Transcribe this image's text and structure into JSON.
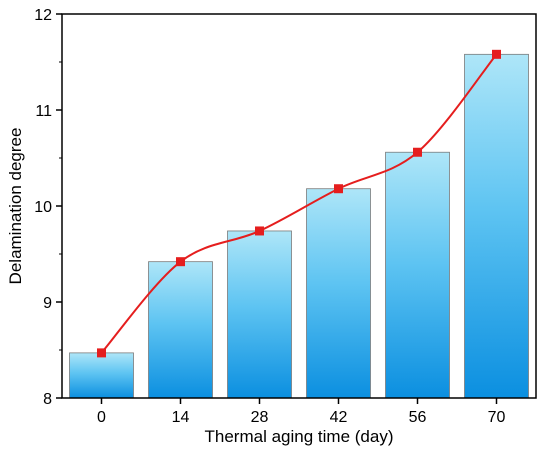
{
  "chart_data": {
    "type": "bar",
    "title": "",
    "xlabel": "Thermal aging time (day)",
    "ylabel": "Delamination degree",
    "categories": [
      "0",
      "14",
      "28",
      "42",
      "56",
      "70"
    ],
    "values": [
      8.47,
      9.42,
      9.74,
      10.18,
      10.56,
      11.58
    ],
    "ylim": [
      8,
      12
    ],
    "yticks": [
      "8",
      "9",
      "10",
      "11",
      "12"
    ],
    "grid": false,
    "legend": "none",
    "overlay_line": {
      "type": "smooth-line-with-square-markers",
      "values": [
        8.47,
        9.42,
        9.74,
        10.18,
        10.56,
        11.58
      ]
    },
    "colors": {
      "bar_top": "#aee6f8",
      "bar_bottom": "#0b8fe0",
      "bar_edge": "#7a7a7a",
      "line": "#e51e1e",
      "marker": "#e51e1e",
      "axis": "#000000"
    }
  }
}
